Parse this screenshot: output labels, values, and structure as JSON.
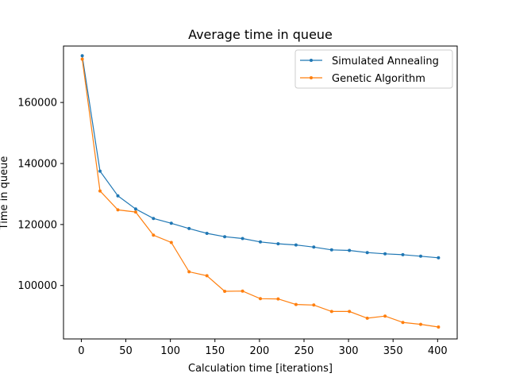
{
  "chart_data": {
    "type": "line",
    "title": "Average time in queue",
    "xlabel": "Calculation time [iterations]",
    "ylabel": "Time in queue",
    "xlim": [
      -20,
      422
    ],
    "ylim": [
      82500,
      178500
    ],
    "xticks": [
      0,
      50,
      100,
      150,
      200,
      250,
      300,
      350,
      400
    ],
    "yticks": [
      100000,
      120000,
      140000,
      160000
    ],
    "grid": false,
    "legend": "top-right",
    "series": [
      {
        "name": "Simulated Annealing",
        "color": "#1f77b4",
        "x": [
          1,
          21,
          41,
          61,
          81,
          101,
          121,
          141,
          161,
          181,
          201,
          221,
          241,
          261,
          281,
          301,
          321,
          341,
          361,
          381,
          401
        ],
        "y": [
          175300,
          137500,
          129400,
          125100,
          122000,
          120400,
          118700,
          117100,
          116000,
          115400,
          114300,
          113700,
          113300,
          112600,
          111700,
          111500,
          110800,
          110400,
          110100,
          109600,
          109100
        ]
      },
      {
        "name": "Genetic Algorithm",
        "color": "#ff7f0e",
        "x": [
          1,
          21,
          41,
          61,
          81,
          101,
          121,
          141,
          161,
          181,
          201,
          221,
          241,
          261,
          281,
          301,
          321,
          341,
          361,
          381,
          401
        ],
        "y": [
          174200,
          131000,
          124800,
          124100,
          116500,
          114100,
          104500,
          103200,
          98100,
          98200,
          95700,
          95600,
          93800,
          93600,
          91500,
          91500,
          89300,
          90000,
          87900,
          87300,
          86400
        ]
      }
    ]
  }
}
